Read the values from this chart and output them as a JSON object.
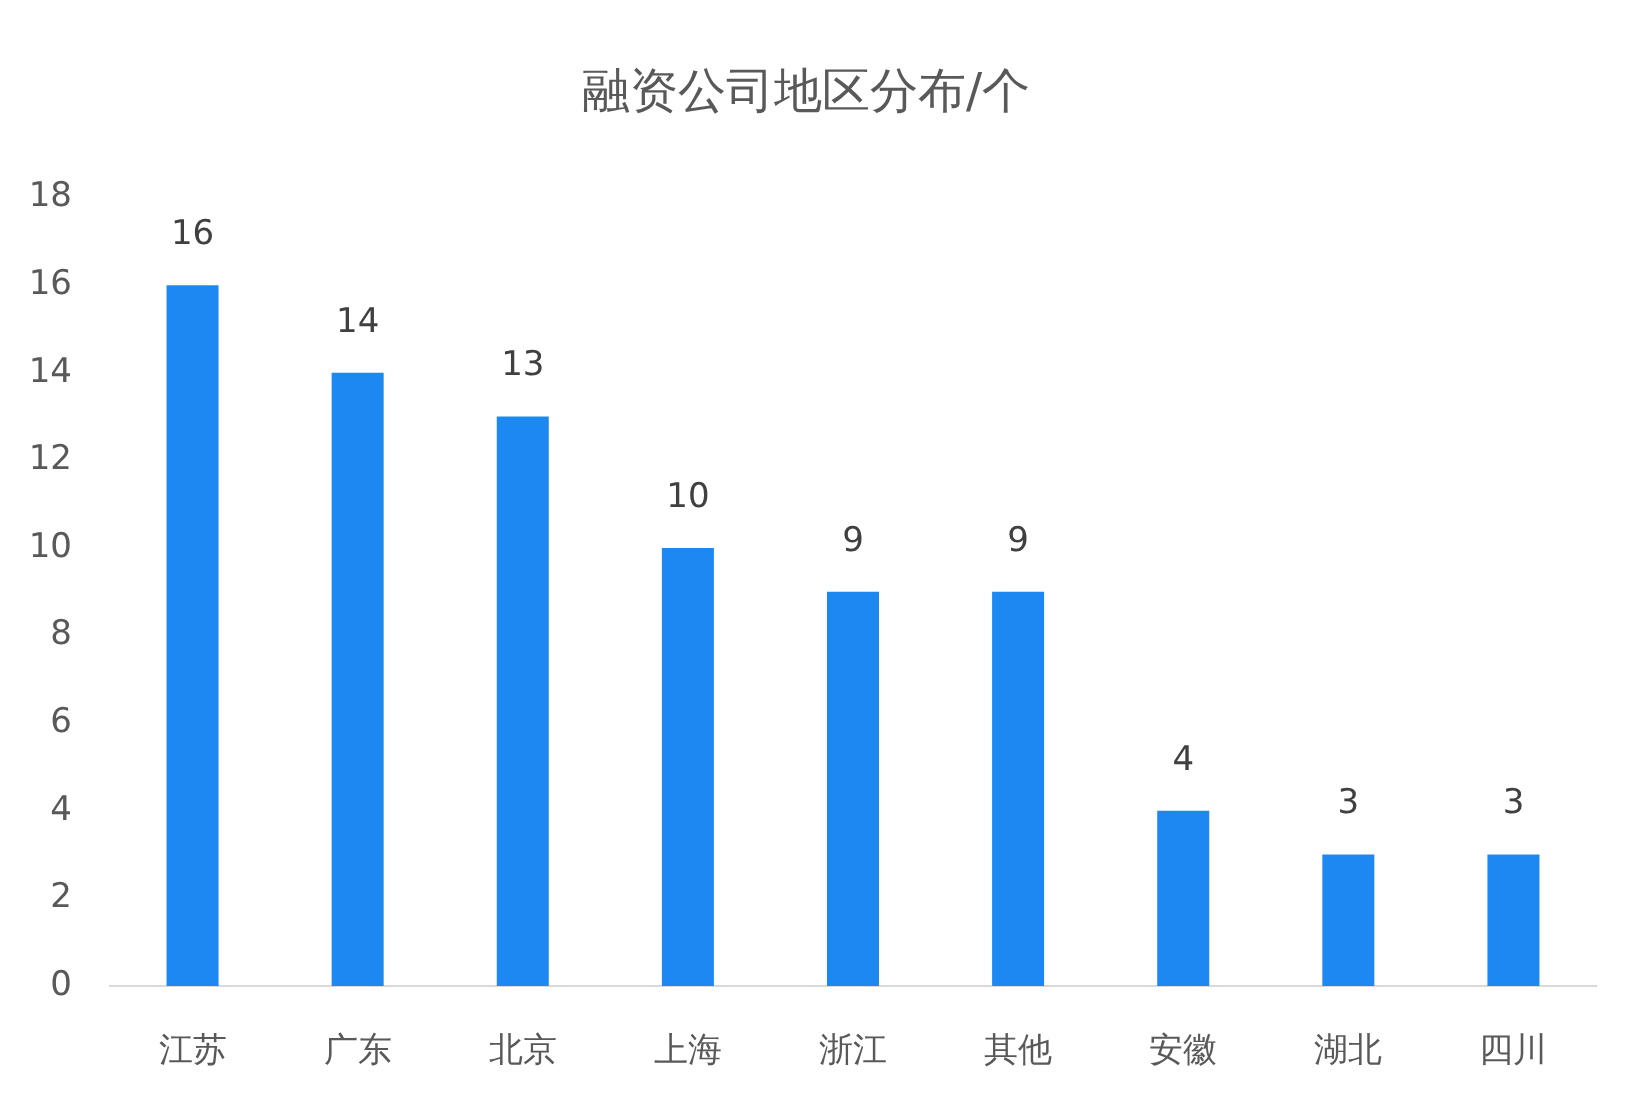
{
  "chart_data": {
    "type": "bar",
    "title": "融资公司地区分布/个",
    "categories": [
      "江苏",
      "广东",
      "北京",
      "上海",
      "浙江",
      "其他",
      "安徽",
      "湖北",
      "四川"
    ],
    "values": [
      16,
      14,
      13,
      10,
      9,
      9,
      4,
      3,
      3
    ],
    "color": "#1e88f2",
    "ylim": [
      0,
      18
    ],
    "yticks": [
      0,
      2,
      4,
      6,
      8,
      10,
      12,
      14,
      16,
      18
    ],
    "grid": false,
    "data_labels": true
  }
}
